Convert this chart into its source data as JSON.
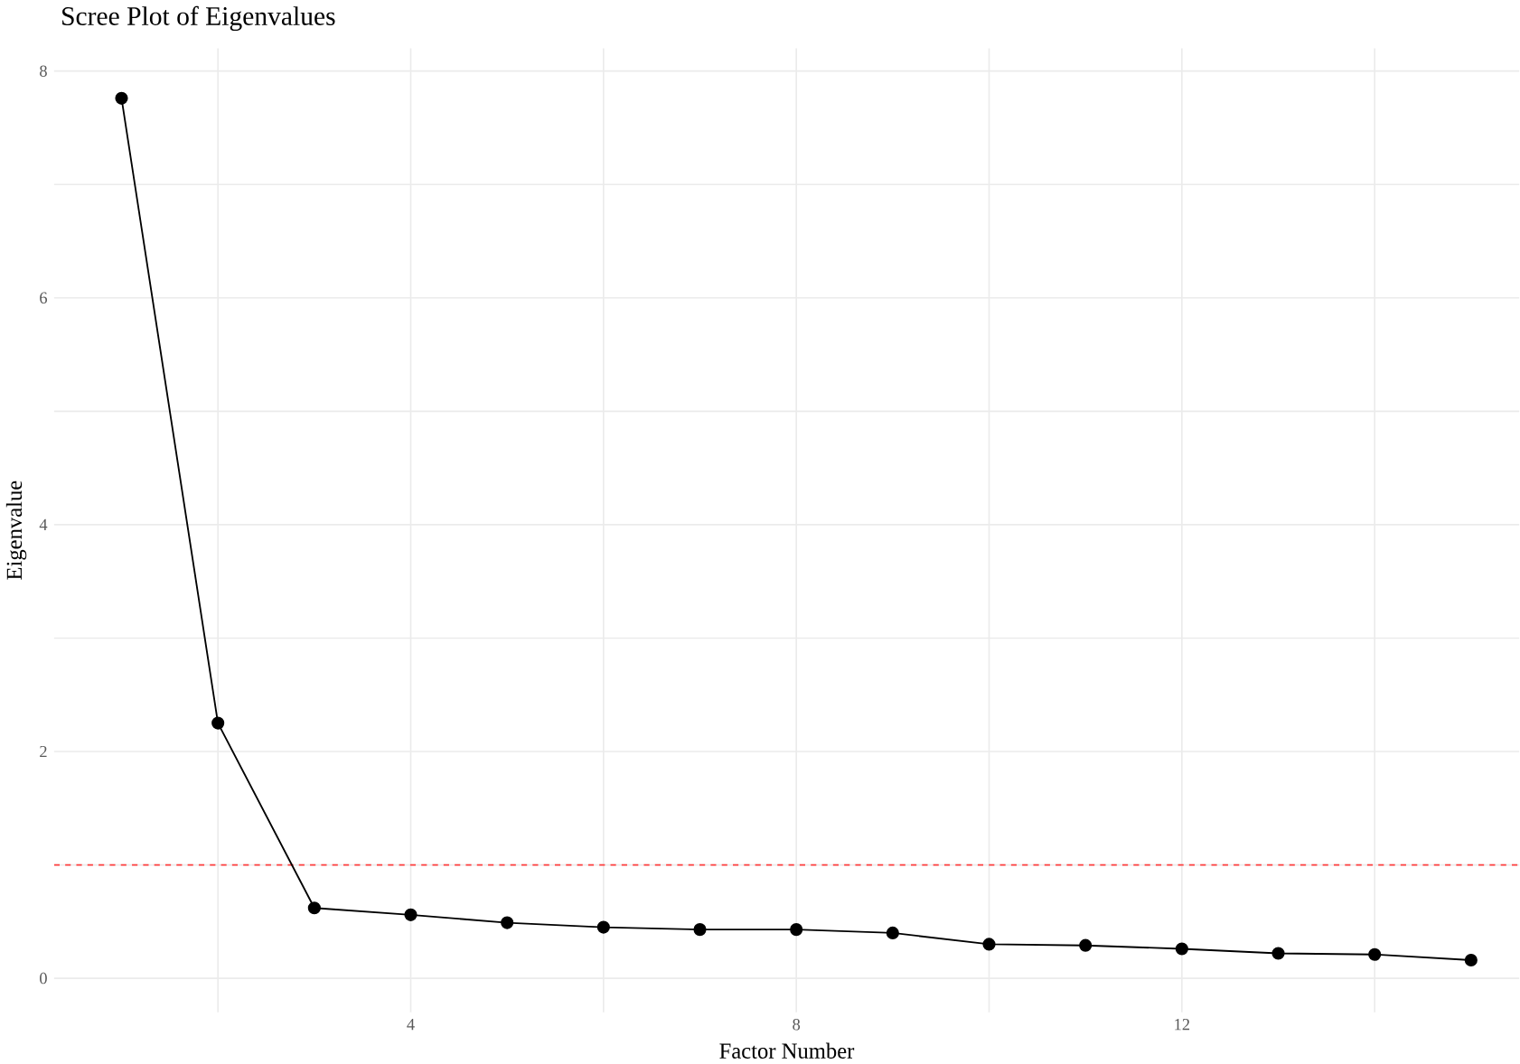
{
  "chart_data": {
    "type": "line",
    "title": "Scree Plot of Eigenvalues",
    "xlabel": "Factor Number",
    "ylabel": "Eigenvalue",
    "x": [
      1,
      2,
      3,
      4,
      5,
      6,
      7,
      8,
      9,
      10,
      11,
      12,
      13,
      14,
      15
    ],
    "series": [
      {
        "color": "#000000",
        "values": [
          7.76,
          2.25,
          0.62,
          0.56,
          0.49,
          0.45,
          0.43,
          0.43,
          0.4,
          0.3,
          0.29,
          0.26,
          0.22,
          0.21,
          0.16
        ]
      }
    ],
    "xlim": [
      0.3,
      15.5
    ],
    "ylim": [
      -0.3,
      8.2
    ],
    "xticks": [
      {
        "value": 2,
        "label": null
      },
      4,
      {
        "value": 6,
        "label": null
      },
      8,
      {
        "value": 10,
        "label": null
      },
      12,
      {
        "value": 14,
        "label": null
      }
    ],
    "yticks": [
      0,
      {
        "value": 1,
        "label": null
      },
      2,
      {
        "value": 3,
        "label": null
      },
      4,
      {
        "value": 5,
        "label": null
      },
      6,
      {
        "value": 7,
        "label": null
      },
      8
    ],
    "ref_lines": [
      {
        "axis": "y",
        "value": 1,
        "color": "#ff4040",
        "line_style": "dashed"
      }
    ],
    "grid": true,
    "marker": "circle",
    "line_style": "solid"
  }
}
